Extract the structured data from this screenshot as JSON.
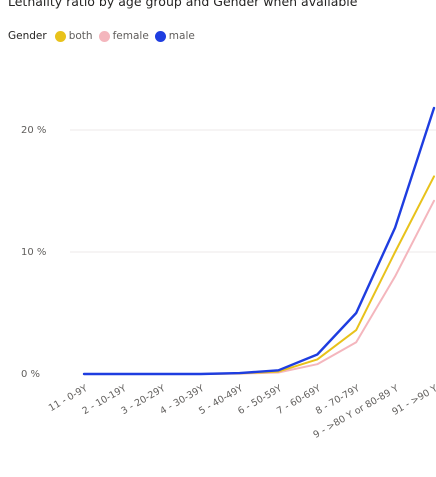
{
  "chart_data": {
    "type": "line",
    "title": "Lethality ratio by age group and Gender when available",
    "legend_title": "Gender",
    "legend_position": "top-left",
    "categories": [
      "11 - 0-9Y",
      "2 - 10-19Y",
      "3 - 20-29Y",
      "4 - 30-39Y",
      "5 - 40-49Y",
      "6 - 50-59Y",
      "7 - 60-69Y",
      "8 - 70-79Y",
      "9 - >80 Y or 80-89 Y",
      "91 - >90 Y"
    ],
    "series": [
      {
        "name": "both",
        "color": "#e8c21b",
        "values": [
          0,
          0,
          0,
          0,
          0.05,
          0.2,
          1.2,
          3.6,
          10,
          16.2
        ]
      },
      {
        "name": "female",
        "color": "#f4b6bd",
        "values": [
          0,
          0,
          0,
          0,
          0.03,
          0.12,
          0.8,
          2.6,
          8,
          14.2
        ]
      },
      {
        "name": "male",
        "color": "#1e3de0",
        "values": [
          0,
          0,
          0,
          0,
          0.07,
          0.3,
          1.6,
          5,
          12,
          21.8
        ]
      }
    ],
    "y_ticks": [
      {
        "value": 0,
        "label": "0 %"
      },
      {
        "value": 10,
        "label": "10 %"
      },
      {
        "value": 20,
        "label": "20 %"
      }
    ],
    "ylim": [
      0,
      23
    ],
    "grid": true
  }
}
